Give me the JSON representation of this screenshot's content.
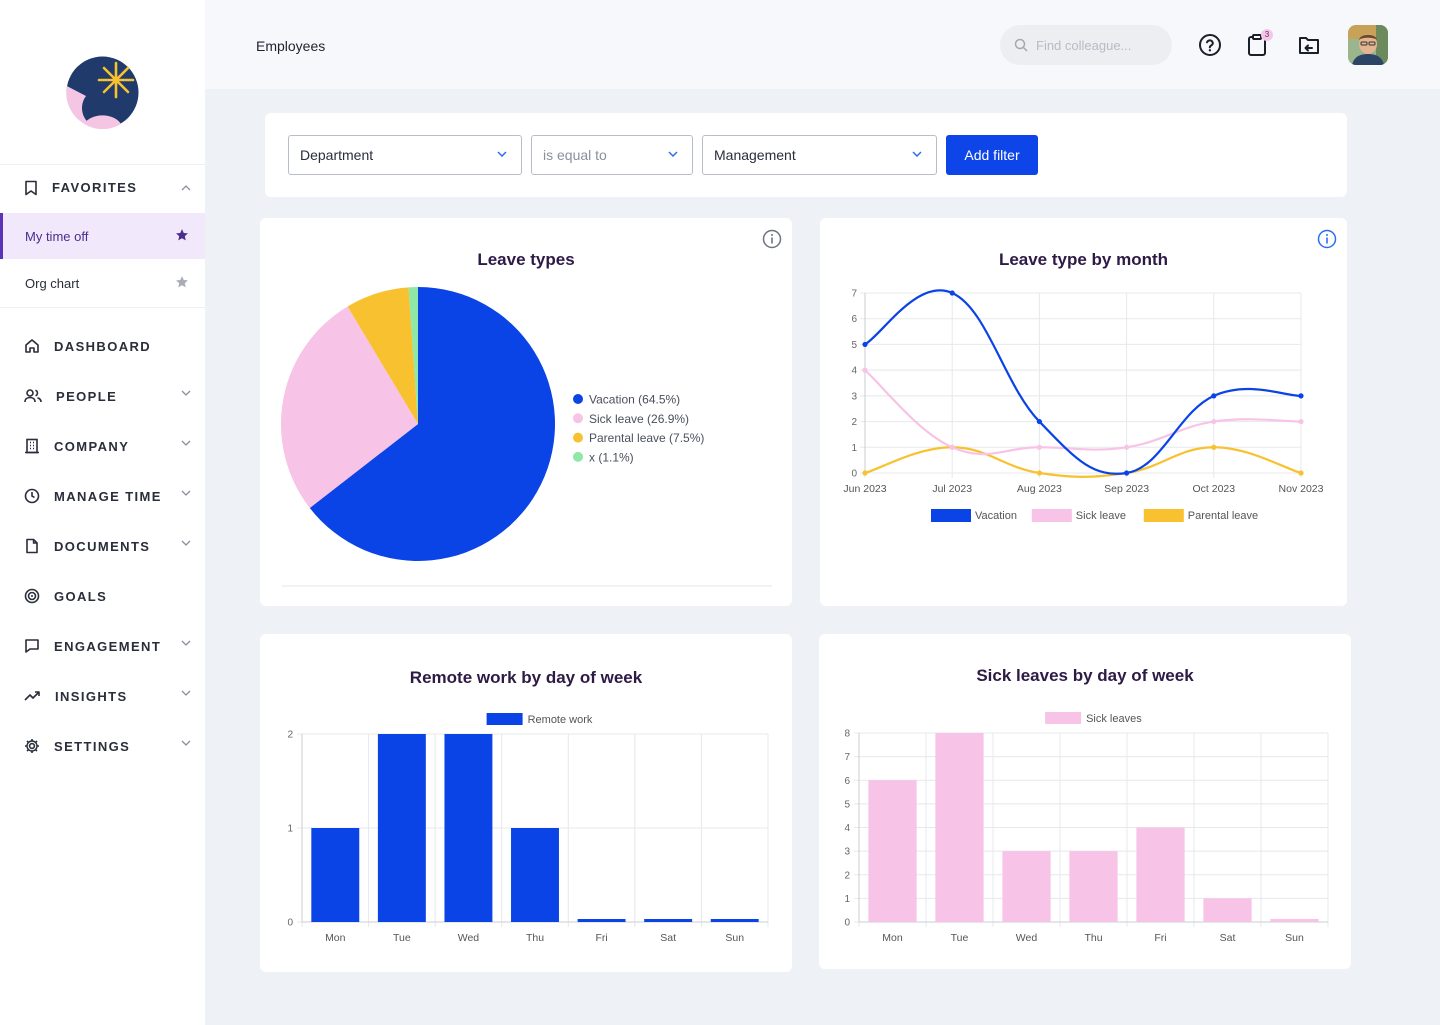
{
  "sidebar": {
    "favorites_label": "FAVORITES",
    "favorites": [
      {
        "label": "My time off",
        "active": true
      },
      {
        "label": "Org chart",
        "active": false
      }
    ],
    "nav": [
      {
        "label": "DASHBOARD",
        "icon": "home-icon",
        "expandable": false
      },
      {
        "label": "PEOPLE",
        "icon": "people-icon",
        "expandable": true
      },
      {
        "label": "COMPANY",
        "icon": "building-icon",
        "expandable": true
      },
      {
        "label": "MANAGE TIME",
        "icon": "clock-icon",
        "expandable": true
      },
      {
        "label": "DOCUMENTS",
        "icon": "document-icon",
        "expandable": true
      },
      {
        "label": "GOALS",
        "icon": "target-icon",
        "expandable": false
      },
      {
        "label": "ENGAGEMENT",
        "icon": "chat-icon",
        "expandable": true
      },
      {
        "label": "INSIGHTS",
        "icon": "trend-icon",
        "expandable": true
      },
      {
        "label": "SETTINGS",
        "icon": "gear-icon",
        "expandable": true
      }
    ]
  },
  "header": {
    "title": "Employees",
    "search_placeholder": "Find colleague...",
    "clipboard_badge": "3"
  },
  "filter": {
    "field": "Department",
    "operator": "is equal to",
    "value": "Management",
    "add_label": "Add filter"
  },
  "colors": {
    "vacation": "#0a43e6",
    "sick": "#f7c3e6",
    "parental": "#f8c12f",
    "x": "#8fe8a6",
    "accent": "#0d45e8"
  },
  "chart_data": [
    {
      "type": "pie",
      "title": "Leave types",
      "series": [
        {
          "name": "Vacation",
          "value": 64.5,
          "label": "Vacation (64.5%)",
          "color": "#0a43e6"
        },
        {
          "name": "Sick leave",
          "value": 26.9,
          "label": "Sick leave (26.9%)",
          "color": "#f7c3e6"
        },
        {
          "name": "Parental leave",
          "value": 7.5,
          "label": "Parental leave (7.5%)",
          "color": "#f8c12f"
        },
        {
          "name": "x",
          "value": 1.1,
          "label": "x (1.1%)",
          "color": "#8fe8a6"
        }
      ],
      "legend": "right"
    },
    {
      "type": "line",
      "title": "Leave type by month",
      "x": [
        "Jun 2023",
        "Jul 2023",
        "Aug 2023",
        "Sep 2023",
        "Oct 2023",
        "Nov 2023"
      ],
      "ylim": [
        0,
        7
      ],
      "yticks": [
        "0",
        "1",
        "2",
        "3",
        "4",
        "5",
        "6",
        "7"
      ],
      "series": [
        {
          "name": "Vacation",
          "values": [
            5,
            7,
            2,
            0,
            3,
            3
          ],
          "color": "#0a43e6"
        },
        {
          "name": "Sick leave",
          "values": [
            4,
            1,
            1,
            1,
            2,
            2
          ],
          "color": "#f7c3e6"
        },
        {
          "name": "Parental leave",
          "values": [
            0,
            1,
            0,
            0,
            1,
            0
          ],
          "color": "#f8c12f"
        }
      ],
      "grid": true,
      "legend": "bottom"
    },
    {
      "type": "bar",
      "title": "Remote work by day of week",
      "categories": [
        "Mon",
        "Tue",
        "Wed",
        "Thu",
        "Fri",
        "Sat",
        "Sun"
      ],
      "series": [
        {
          "name": "Remote work",
          "values": [
            1,
            2,
            2,
            1,
            0,
            0,
            0
          ],
          "color": "#0a43e6"
        }
      ],
      "ylim": [
        0,
        2
      ],
      "yticks": [
        "0",
        "1",
        "2"
      ],
      "grid": true,
      "legend": "top"
    },
    {
      "type": "bar",
      "title": "Sick leaves by day of week",
      "categories": [
        "Mon",
        "Tue",
        "Wed",
        "Thu",
        "Fri",
        "Sat",
        "Sun"
      ],
      "series": [
        {
          "name": "Sick leaves",
          "values": [
            6,
            8,
            3,
            3,
            4,
            1,
            0
          ],
          "color": "#f7c3e6"
        }
      ],
      "ylim": [
        0,
        8
      ],
      "yticks": [
        "0",
        "1",
        "2",
        "3",
        "4",
        "5",
        "6",
        "7",
        "8"
      ],
      "grid": true,
      "legend": "top"
    }
  ]
}
